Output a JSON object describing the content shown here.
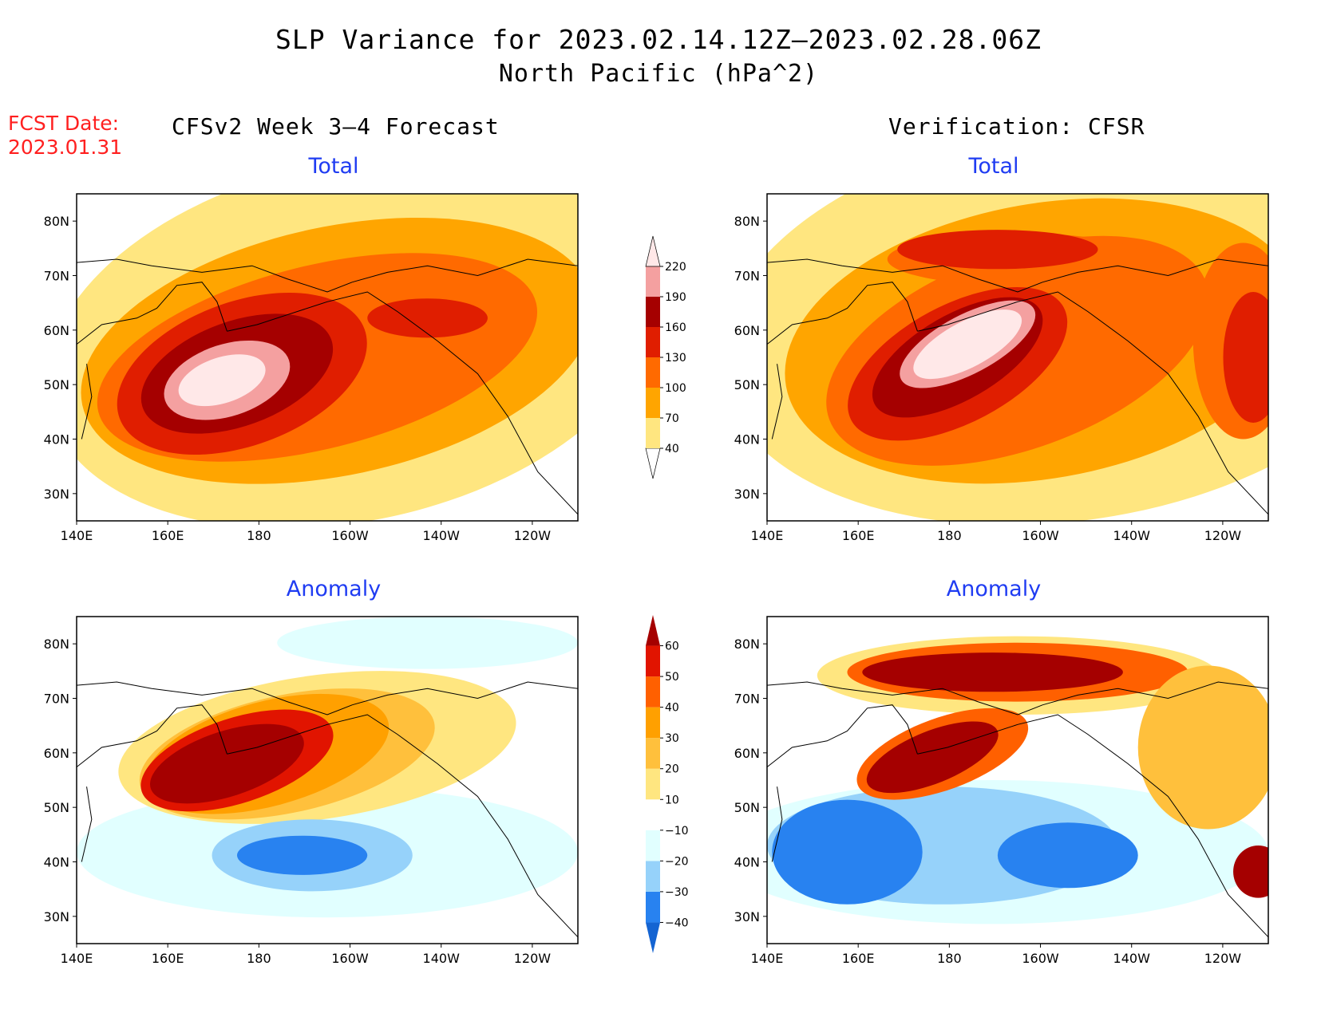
{
  "title": {
    "line1": "SLP Variance for 2023.02.14.12Z–2023.02.28.06Z",
    "line2": "North Pacific (hPa^2)"
  },
  "fcst": {
    "label": "FCST Date:",
    "date": "2023.01.31"
  },
  "columns": {
    "left": "CFSv2 Week 3–4 Forecast",
    "right": "Verification: CFSR"
  },
  "panels": {
    "fcst_total": "Total",
    "fcst_anomaly": "Anomaly",
    "verif_total": "Total",
    "verif_anomaly": "Anomaly"
  },
  "axes": {
    "lat_ticks": [
      "30N",
      "40N",
      "50N",
      "60N",
      "70N",
      "80N"
    ],
    "lon_ticks": [
      "140E",
      "160E",
      "180",
      "160W",
      "140W",
      "120W"
    ]
  },
  "colorbars": {
    "total": {
      "levels": [
        "40",
        "70",
        "100",
        "130",
        "160",
        "190",
        "220"
      ],
      "colors": [
        "#ffffff",
        "#ffe680",
        "#ffa500",
        "#ff6a00",
        "#e01e00",
        "#a50000",
        "#f4a0a0",
        "#ffe8e8"
      ]
    },
    "anomaly": {
      "levels": [
        "−40",
        "−30",
        "−20",
        "−10",
        "10",
        "20",
        "30",
        "40",
        "50",
        "60"
      ],
      "colors": [
        "#1464d2",
        "#2882f0",
        "#96d2fa",
        "#e1ffff",
        "#ffffff",
        "#ffe680",
        "#ffc03c",
        "#ffa000",
        "#ff6000",
        "#e11400",
        "#a50000"
      ]
    }
  }
}
